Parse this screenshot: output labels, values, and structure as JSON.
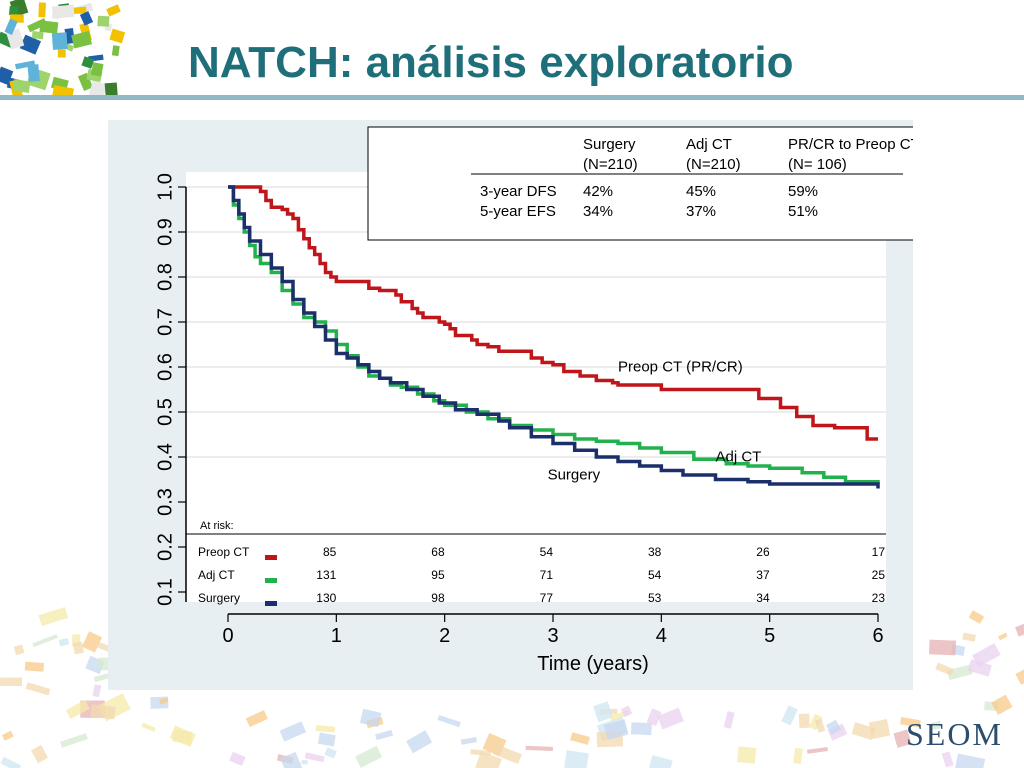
{
  "title": "NATCH: análisis exploratorio",
  "logo": "SEOM",
  "summary_table": {
    "headers": [
      {
        "name": "Surgery",
        "n": "(N=210)"
      },
      {
        "name": "Adj CT",
        "n": "(N=210)"
      },
      {
        "name": "PR/CR to Preop CT",
        "n": "(N= 106)"
      }
    ],
    "rows": [
      {
        "label": "3-year DFS",
        "values": [
          "42%",
          "45%",
          "59%"
        ]
      },
      {
        "label": "5-year EFS",
        "values": [
          "34%",
          "37%",
          "51%"
        ]
      }
    ]
  },
  "risk_table": {
    "title": "At risk:",
    "rows": [
      {
        "label": "Preop CT",
        "values": [
          "85",
          "68",
          "54",
          "38",
          "26",
          "17"
        ]
      },
      {
        "label": "Adj CT",
        "values": [
          "131",
          "95",
          "71",
          "54",
          "37",
          "25"
        ]
      },
      {
        "label": "Surgery",
        "values": [
          "130",
          "98",
          "77",
          "53",
          "34",
          "23"
        ]
      }
    ]
  },
  "colors": {
    "preop": "#c0151a",
    "adj": "#23b14d",
    "surgery": "#1c2f6b",
    "title": "#1f6f7a",
    "plot_bg": "#e8eff3"
  },
  "chart_data": {
    "type": "line",
    "title": "",
    "xlabel": "Time (years)",
    "ylabel": "",
    "xlim": [
      0,
      6
    ],
    "ylim": [
      0.1,
      1.0
    ],
    "xticks": [
      "0",
      "1",
      "2",
      "3",
      "4",
      "5",
      "6"
    ],
    "yticks": [
      "0.1",
      "0.2",
      "0.3",
      "0.4",
      "0.5",
      "0.6",
      "0.7",
      "0.8",
      "0.9",
      "1.0"
    ],
    "grid": "horizontal",
    "series": [
      {
        "name": "Preop CT (PR/CR)",
        "color": "#c0151a",
        "x": [
          0,
          0.3,
          0.35,
          0.4,
          0.5,
          0.55,
          0.6,
          0.65,
          0.7,
          0.75,
          0.8,
          0.85,
          0.9,
          0.95,
          1.0,
          1.1,
          1.3,
          1.4,
          1.55,
          1.6,
          1.7,
          1.75,
          1.8,
          1.95,
          2.0,
          2.05,
          2.1,
          2.25,
          2.3,
          2.4,
          2.5,
          2.55,
          2.8,
          2.9,
          3.0,
          3.1,
          3.25,
          3.4,
          3.55,
          3.6,
          4.0,
          4.8,
          4.9,
          5.1,
          5.25,
          5.4,
          5.6,
          5.9,
          6.0
        ],
        "y": [
          1.0,
          0.99,
          0.97,
          0.955,
          0.95,
          0.94,
          0.93,
          0.905,
          0.885,
          0.865,
          0.85,
          0.83,
          0.81,
          0.8,
          0.79,
          0.79,
          0.775,
          0.77,
          0.76,
          0.745,
          0.73,
          0.72,
          0.71,
          0.7,
          0.695,
          0.685,
          0.67,
          0.66,
          0.65,
          0.645,
          0.635,
          0.635,
          0.62,
          0.61,
          0.605,
          0.59,
          0.58,
          0.57,
          0.565,
          0.56,
          0.55,
          0.55,
          0.53,
          0.51,
          0.49,
          0.47,
          0.465,
          0.44,
          0.44
        ]
      },
      {
        "name": "Adj CT",
        "color": "#23b14d",
        "x": [
          0,
          0.05,
          0.1,
          0.15,
          0.2,
          0.25,
          0.3,
          0.4,
          0.5,
          0.6,
          0.7,
          0.8,
          0.9,
          1.0,
          1.1,
          1.2,
          1.3,
          1.4,
          1.5,
          1.6,
          1.75,
          1.9,
          2.0,
          2.2,
          2.4,
          2.6,
          2.8,
          3.0,
          3.2,
          3.4,
          3.6,
          3.8,
          4.0,
          4.3,
          4.6,
          4.8,
          5.0,
          5.3,
          5.5,
          5.7,
          6.0
        ],
        "y": [
          1.0,
          0.96,
          0.93,
          0.9,
          0.87,
          0.845,
          0.83,
          0.81,
          0.77,
          0.74,
          0.71,
          0.7,
          0.68,
          0.65,
          0.625,
          0.6,
          0.58,
          0.575,
          0.56,
          0.555,
          0.54,
          0.525,
          0.515,
          0.5,
          0.485,
          0.47,
          0.46,
          0.45,
          0.44,
          0.435,
          0.43,
          0.42,
          0.41,
          0.395,
          0.385,
          0.38,
          0.375,
          0.365,
          0.355,
          0.345,
          0.34
        ]
      },
      {
        "name": "Surgery",
        "color": "#1c2f6b",
        "x": [
          0,
          0.05,
          0.1,
          0.15,
          0.2,
          0.3,
          0.4,
          0.5,
          0.6,
          0.7,
          0.8,
          0.9,
          1.0,
          1.1,
          1.2,
          1.3,
          1.4,
          1.5,
          1.65,
          1.8,
          1.95,
          2.1,
          2.3,
          2.5,
          2.6,
          2.8,
          3.0,
          3.2,
          3.4,
          3.6,
          3.8,
          4.0,
          4.2,
          4.5,
          4.8,
          5.0,
          5.5,
          6.0
        ],
        "y": [
          1.0,
          0.97,
          0.94,
          0.91,
          0.88,
          0.85,
          0.82,
          0.79,
          0.75,
          0.72,
          0.69,
          0.66,
          0.63,
          0.62,
          0.605,
          0.59,
          0.575,
          0.565,
          0.55,
          0.535,
          0.52,
          0.505,
          0.495,
          0.48,
          0.465,
          0.445,
          0.43,
          0.415,
          0.4,
          0.39,
          0.38,
          0.37,
          0.36,
          0.35,
          0.345,
          0.34,
          0.34,
          0.33
        ]
      }
    ],
    "annotations": [
      {
        "text": "Preop CT (PR/CR)",
        "x": 3.6,
        "y": 0.59
      },
      {
        "text": "Adj CT",
        "x": 4.5,
        "y": 0.39
      },
      {
        "text": "Surgery",
        "x": 2.95,
        "y": 0.35
      }
    ]
  }
}
